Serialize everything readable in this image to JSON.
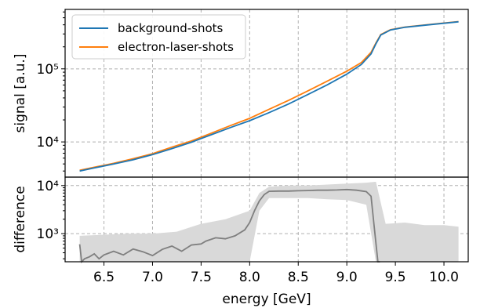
{
  "chart_data": [
    {
      "type": "line",
      "ylabel": "signal [a.u.]",
      "yscale": "log",
      "ylim": [
        3300,
        650000
      ],
      "xlim": [
        6.1,
        10.25
      ],
      "yticks": [
        {
          "value": 10000,
          "label": "10⁴"
        },
        {
          "value": 100000,
          "label": "10⁵"
        }
      ],
      "grid": true,
      "legend_position": "top-left",
      "colors": {
        "background-shots": "#1f77b4",
        "electron-laser-shots": "#ff7f0e"
      },
      "series": [
        {
          "name": "background-shots",
          "x": [
            6.25,
            6.4,
            6.6,
            6.8,
            7.0,
            7.2,
            7.4,
            7.6,
            7.8,
            8.0,
            8.2,
            8.4,
            8.6,
            8.8,
            9.0,
            9.15,
            9.25,
            9.3,
            9.35,
            9.45,
            9.6,
            9.8,
            10.0,
            10.15
          ],
          "y": [
            4000,
            4400,
            5000,
            5700,
            6700,
            8100,
            9900,
            12500,
            15700,
            19500,
            25200,
            33000,
            44500,
            60500,
            84500,
            115000,
            160000,
            220000,
            290000,
            340000,
            370000,
            395000,
            420000,
            440000
          ]
        },
        {
          "name": "electron-laser-shots",
          "x": [
            6.25,
            6.4,
            6.6,
            6.8,
            7.0,
            7.2,
            7.4,
            7.6,
            7.8,
            8.0,
            8.2,
            8.4,
            8.6,
            8.8,
            9.0,
            9.15,
            9.25,
            9.3,
            9.35,
            9.45,
            9.6,
            9.8,
            10.0,
            10.15
          ],
          "y": [
            4100,
            4500,
            5100,
            5900,
            6900,
            8500,
            10300,
            13100,
            16700,
            21000,
            28000,
            37000,
            50000,
            68000,
            93000,
            122000,
            168000,
            226000,
            295000,
            343000,
            373000,
            398000,
            423000,
            443000
          ]
        }
      ]
    },
    {
      "type": "area",
      "xlabel": "energy [GeV]",
      "ylabel": "difference",
      "yscale": "log",
      "ylim": [
        260,
        15000
      ],
      "xlim": [
        6.1,
        10.25
      ],
      "xticks": [
        6.5,
        7.0,
        7.5,
        8.0,
        8.5,
        9.0,
        9.5,
        10.0
      ],
      "xtick_labels": [
        "6.5",
        "7.0",
        "7.5",
        "8.0",
        "8.5",
        "9.0",
        "9.5",
        "10.0"
      ],
      "yticks": [
        {
          "value": 1000,
          "label": "10³"
        },
        {
          "value": 10000,
          "label": "10⁴"
        }
      ],
      "grid": true,
      "colors": {
        "line": "#7f7f7f",
        "band": "#d9d9d9"
      },
      "series": [
        {
          "role": "line",
          "x": [
            6.25,
            6.27,
            6.3,
            6.35,
            6.4,
            6.45,
            6.5,
            6.6,
            6.7,
            6.8,
            6.9,
            7.0,
            7.1,
            7.2,
            7.3,
            7.4,
            7.5,
            7.55,
            7.65,
            7.75,
            7.85,
            7.95,
            8.0,
            8.05,
            8.1,
            8.15,
            8.2,
            8.3,
            8.4,
            8.5,
            8.6,
            8.7,
            8.8,
            8.9,
            9.0,
            9.1,
            9.2,
            9.25,
            9.28,
            9.32,
            9.34
          ],
          "y": [
            600,
            260,
            300,
            330,
            380,
            300,
            360,
            430,
            360,
            480,
            420,
            350,
            470,
            550,
            430,
            580,
            610,
            700,
            820,
            780,
            900,
            1200,
            1700,
            3000,
            4800,
            6500,
            7600,
            7700,
            7700,
            7800,
            7900,
            8000,
            8000,
            8100,
            8300,
            8000,
            7500,
            6000,
            1500,
            260,
            260
          ]
        },
        {
          "role": "band",
          "x": [
            6.25,
            6.5,
            6.75,
            7.0,
            7.25,
            7.5,
            7.75,
            8.0,
            8.1,
            8.2,
            8.4,
            8.6,
            8.8,
            9.0,
            9.2,
            9.3,
            9.4,
            9.6,
            9.8,
            10.0,
            10.15
          ],
          "upper": [
            900,
            950,
            1000,
            1000,
            1100,
            1600,
            2000,
            3000,
            7000,
            9500,
            10000,
            10000,
            10500,
            11000,
            11500,
            12000,
            1600,
            1700,
            1500,
            1500,
            1400
          ],
          "lower": [
            260,
            260,
            260,
            260,
            260,
            260,
            260,
            260,
            3000,
            5500,
            5500,
            5500,
            5200,
            5000,
            4000,
            260,
            260,
            260,
            260,
            260,
            260
          ]
        }
      ]
    }
  ]
}
